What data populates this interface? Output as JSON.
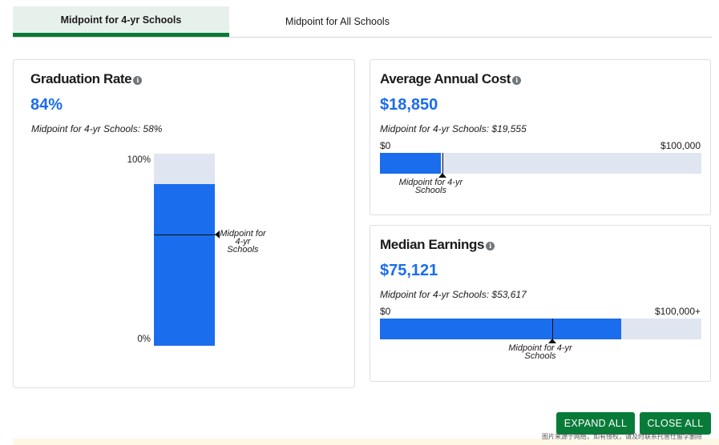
{
  "tabs": {
    "active": "Midpoint for 4-yr Schools",
    "inactive": "Midpoint for All Schools"
  },
  "graduation": {
    "title": "Graduation Rate",
    "value": "84%",
    "percent": 84,
    "midpoint_percent": 58,
    "note": "Midpoint for 4-yr Schools: 58%",
    "tick_top": "100%",
    "tick_bottom": "0%",
    "marker_label": "Midpoint for 4-yr Schools"
  },
  "cost": {
    "title": "Average Annual Cost",
    "value": "$18,850",
    "amount": 18850,
    "midpoint_amount": 19555,
    "max": 100000,
    "note": "Midpoint for 4-yr Schools: $19,555",
    "min_label": "$0",
    "max_label": "$100,000",
    "marker_label": "Midpoint for 4-yr Schools"
  },
  "earnings": {
    "title": "Median Earnings",
    "value": "$75,121",
    "amount": 75121,
    "midpoint_amount": 53617,
    "max": 100000,
    "note": "Midpoint for 4-yr Schools: $53,617",
    "min_label": "$0",
    "max_label": "$100,000+",
    "marker_label": "Midpoint for 4-yr Schools"
  },
  "buttons": {
    "expand": "EXPAND ALL",
    "close": "CLOSE ALL"
  },
  "watermark": "图片来源于网络，如有侵权，请及时联系托普仕留学删除",
  "colors": {
    "accent_green": "#087b39",
    "bar_blue": "#1a6ded",
    "bar_bg": "#dfe5f1"
  }
}
